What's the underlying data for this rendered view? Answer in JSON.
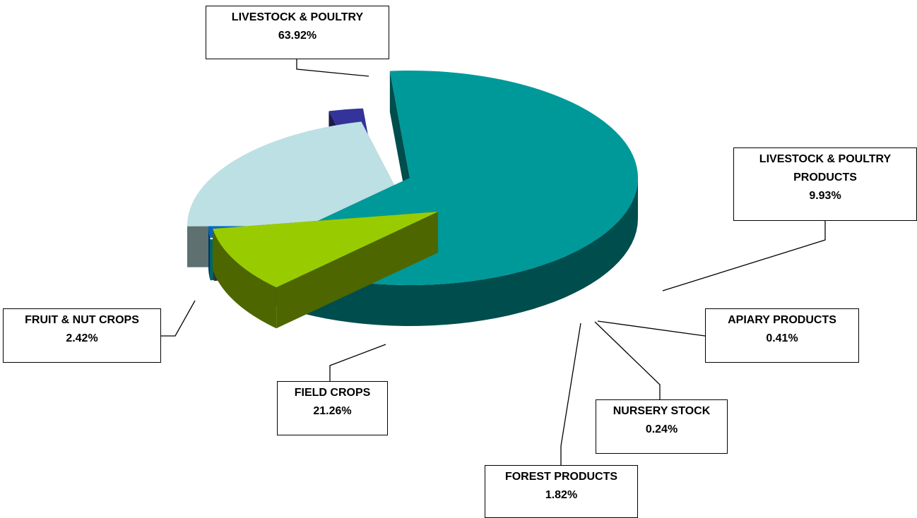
{
  "chart_data": {
    "type": "pie",
    "title": "",
    "slices": [
      {
        "label": "LIVESTOCK & POULTRY",
        "value_text": "63.92%",
        "value": 63.92,
        "color": "#009999",
        "side_color": "#004D4D"
      },
      {
        "label": "LIVESTOCK & POULTRY PRODUCTS",
        "value_text": "9.93%",
        "value": 9.93,
        "color": "#99CC00",
        "side_color": "#4D6600"
      },
      {
        "label": "APIARY PRODUCTS",
        "value_text": "0.41%",
        "value": 0.41,
        "color": "#969696",
        "side_color": "#333333"
      },
      {
        "label": "NURSERY STOCK",
        "value_text": "0.24%",
        "value": 0.24,
        "color": "#CCFFFF",
        "side_color": "#006666"
      },
      {
        "label": "FOREST PRODUCTS",
        "value_text": "1.82%",
        "value": 1.82,
        "color": "#0066CC",
        "side_color": "#003366"
      },
      {
        "label": "FIELD CROPS",
        "value_text": "21.26%",
        "value": 21.26,
        "color": "#BCE0E4",
        "side_color": "#5E7070"
      },
      {
        "label": "FRUIT & NUT CROPS",
        "value_text": "2.42%",
        "value": 2.42,
        "color": "#333399",
        "side_color": "#1A1A4D"
      }
    ]
  },
  "labels": {
    "livestock": {
      "line1": "LIVESTOCK & POULTRY",
      "line2": "63.92%"
    },
    "products": {
      "line1": "LIVESTOCK & POULTRY",
      "line2": "PRODUCTS",
      "line3": "9.93%"
    },
    "apiary": {
      "line1": "APIARY PRODUCTS",
      "line2": "0.41%"
    },
    "nursery": {
      "line1": "NURSERY STOCK",
      "line2": "0.24%"
    },
    "forest": {
      "line1": "FOREST PRODUCTS",
      "line2": "1.82%"
    },
    "field": {
      "line1": "FIELD CROPS",
      "line2": "21.26%"
    },
    "fruit": {
      "line1": "FRUIT & NUT CROPS",
      "line2": "2.42%"
    }
  }
}
